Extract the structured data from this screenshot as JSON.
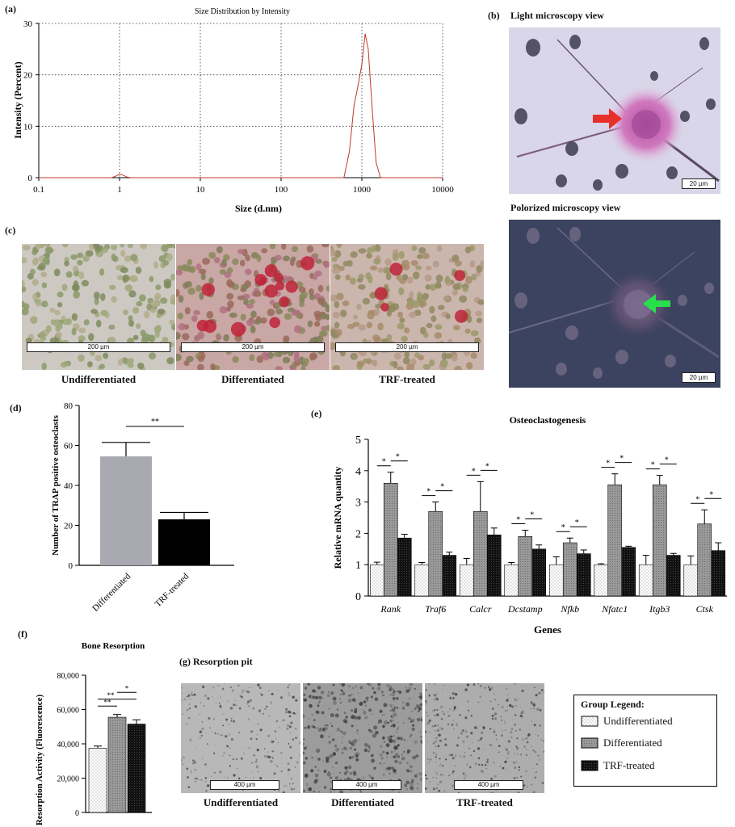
{
  "panel_a": {
    "label": "(a)",
    "chart_data": {
      "type": "line",
      "title": "Size Distribution by Intensity",
      "xlabel": "Size (d.nm)",
      "ylabel": "Intensity (Percent)",
      "xscale": "log",
      "xlim": [
        0.1,
        10000
      ],
      "ylim": [
        0,
        30
      ],
      "grid": true,
      "x_ticks": [
        "0.1",
        "1",
        "10",
        "100",
        "1000",
        "10000"
      ],
      "y_ticks": [
        "0",
        "10",
        "20",
        "30"
      ],
      "series": [
        {
          "color": "#c0392b",
          "x": [
            0.1,
            0.8,
            0.9,
            1.0,
            1.1,
            1.25,
            1.4,
            600,
            700,
            800,
            900,
            1000,
            1100,
            1200,
            1350,
            1500,
            1700,
            10000
          ],
          "y": [
            0,
            0,
            0.3,
            0.7,
            0.5,
            0.1,
            0,
            0,
            5,
            14,
            18,
            22,
            28,
            25,
            13,
            3,
            0,
            0
          ]
        }
      ]
    }
  },
  "panel_b": {
    "label": "(b)",
    "light_title": "Light microscopy view",
    "polarized_title": "Polorized microscopy view",
    "scale_light": "20 µm",
    "scale_polarized": "20 µm",
    "arrow_light_color": "#e8302a",
    "arrow_polarized_color": "#27e04a"
  },
  "panel_c": {
    "label": "(c)",
    "scale": "200 µm",
    "captions": [
      "Undifferentiated",
      "Differentiated",
      "TRF-treated"
    ]
  },
  "panel_d": {
    "label": "(d)",
    "chart_data": {
      "type": "bar",
      "categories": [
        "Differentiated",
        "TRF-treated"
      ],
      "values": [
        54.5,
        23
      ],
      "errors": [
        7,
        3.5
      ],
      "colors": [
        "#a9a9b1",
        "#000000"
      ],
      "ylabel": "Number of TRAP positive osteoclasts",
      "ylim": [
        0,
        80
      ],
      "y_ticks": [
        "0",
        "20",
        "40",
        "60",
        "80"
      ],
      "significance": "**"
    }
  },
  "panel_e": {
    "label": "(e)",
    "chart_data": {
      "type": "bar",
      "title": "Osteoclastogenesis",
      "xlabel": "Genes",
      "ylabel": "Relative mRNA quantity",
      "ylim": [
        0,
        5
      ],
      "y_ticks": [
        "0",
        "1",
        "2",
        "3",
        "4",
        "5"
      ],
      "categories": [
        "Rank",
        "Traf6",
        "Calcr",
        "Dcstamp",
        "Nfkb",
        "Nfatc1",
        "Itgb3",
        "Ctsk"
      ],
      "series": [
        {
          "name": "Undifferentiated",
          "values": [
            1,
            1,
            1,
            1,
            1,
            1,
            1,
            1
          ],
          "errors": [
            0.08,
            0.07,
            0.2,
            0.07,
            0.25,
            0.03,
            0.3,
            0.28
          ]
        },
        {
          "name": "Differentiated",
          "values": [
            3.6,
            2.7,
            2.7,
            1.9,
            1.7,
            3.55,
            3.55,
            2.3
          ],
          "errors": [
            0.35,
            0.3,
            0.95,
            0.2,
            0.15,
            0.35,
            0.3,
            0.45
          ]
        },
        {
          "name": "TRF-treated",
          "values": [
            1.85,
            1.3,
            1.95,
            1.5,
            1.35,
            1.55,
            1.3,
            1.45
          ],
          "errors": [
            0.12,
            0.1,
            0.22,
            0.13,
            0.12,
            0.04,
            0.06,
            0.25
          ]
        }
      ],
      "significance_mark": "*"
    }
  },
  "panel_f": {
    "label": "(f)",
    "chart_data": {
      "type": "bar",
      "title": "Bone Resorption",
      "ylabel": "Resorption Activity (Fluorescence)",
      "ylim": [
        0,
        80000
      ],
      "y_ticks": [
        "0",
        "20,000",
        "40,000",
        "60,000",
        "80,000"
      ],
      "categories": [
        "Undifferentiated",
        "Differentiated",
        "TRF-treated"
      ],
      "values": [
        37500,
        55500,
        51500
      ],
      "errors": [
        1200,
        1600,
        2500
      ],
      "significance": [
        "**",
        "**",
        "*"
      ]
    }
  },
  "panel_g": {
    "title": "(g) Resorption pit",
    "scale": "400 µm",
    "captions": [
      "Undifferentiated",
      "Differentiated",
      "TRF-treated"
    ]
  },
  "legend": {
    "title": "Group Legend:",
    "items": [
      "Undifferentiated",
      "Differentiated",
      "TRF-treated"
    ]
  }
}
